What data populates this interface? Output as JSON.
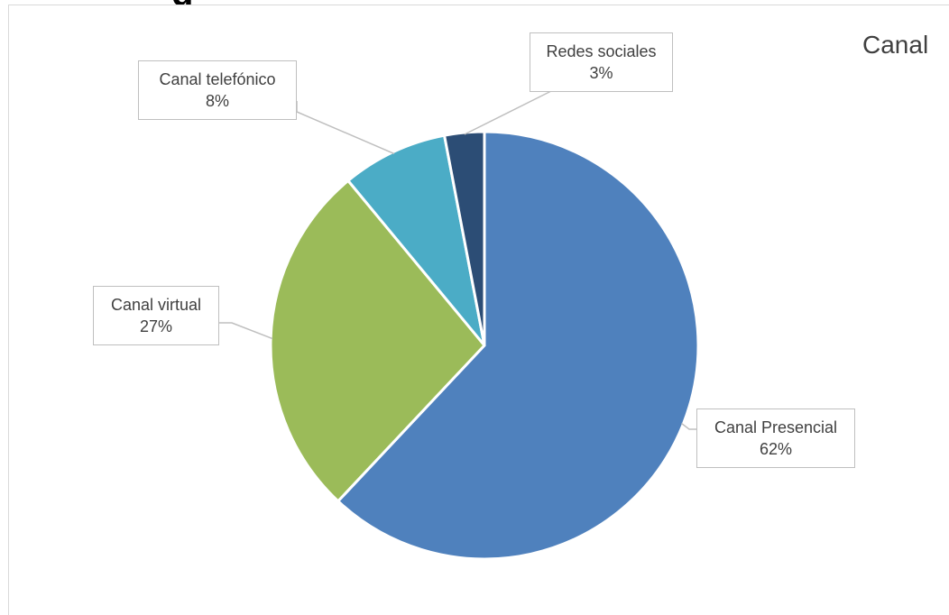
{
  "page": {
    "heading_fragment": "g"
  },
  "chart_data": {
    "type": "pie",
    "title": "Canal",
    "categories": [
      "Canal Presencial",
      "Canal virtual",
      "Canal telefónico",
      "Redes sociales"
    ],
    "values": [
      62,
      27,
      8,
      3
    ],
    "value_labels": [
      "62%",
      "27%",
      "8%",
      "3%"
    ],
    "unit": "%",
    "colors": [
      "#4f81bd",
      "#9bbb59",
      "#4bacc6",
      "#2c4d75"
    ],
    "slice_border_color": "#ffffff",
    "label_border_color": "#bfbfbf",
    "leader_line_color": "#bfbfbf",
    "legend": "none",
    "start_angle_deg": 0,
    "direction": "clockwise"
  }
}
